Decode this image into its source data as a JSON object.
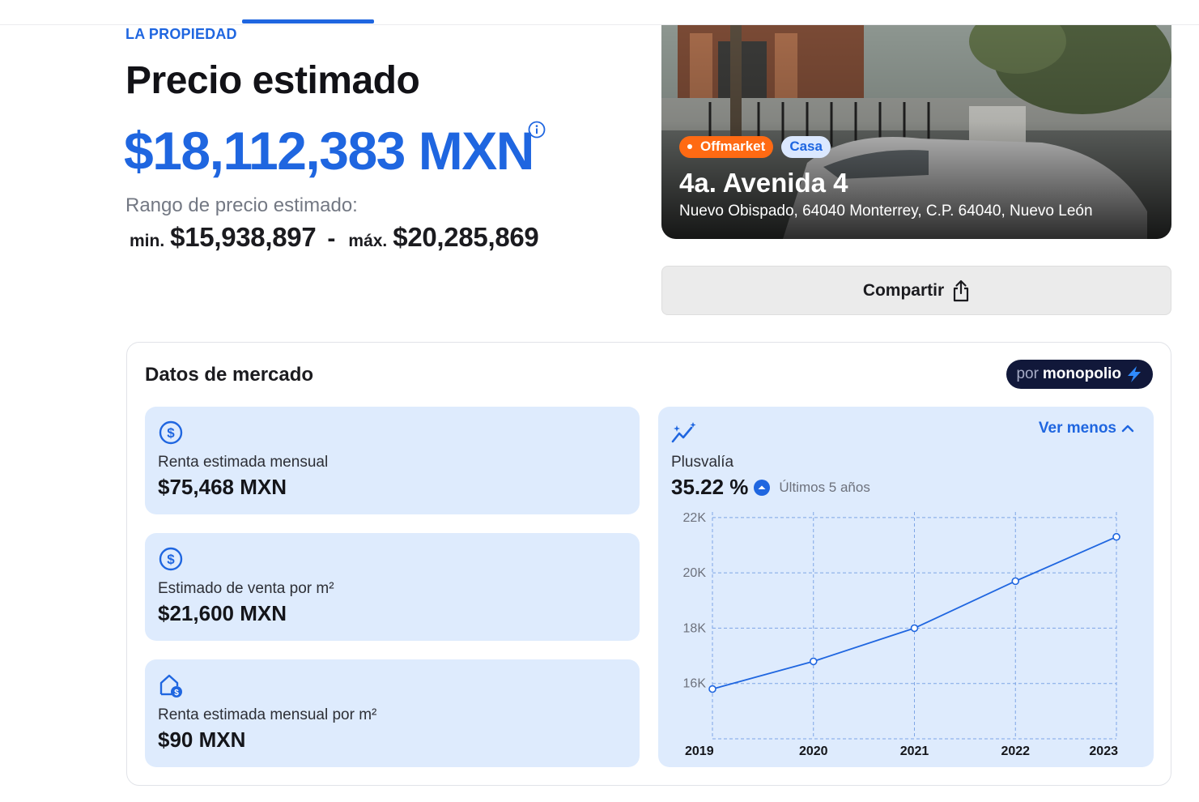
{
  "section": {
    "eyebrow": "LA PROPIEDAD"
  },
  "estimate": {
    "title": "Precio estimado",
    "price": "$18,112,383 MXN",
    "range_label": "Rango de precio estimado:",
    "min_label": "min.",
    "min_value": "$15,938,897",
    "dash": "-",
    "max_label": "máx.",
    "max_value": "$20,285,869"
  },
  "property": {
    "badge_offmarket": "Offmarket",
    "badge_type": "Casa",
    "title": "4a. Avenida 4",
    "address": "Nuevo Obispado, 64040 Monterrey, C.P. 64040, Nuevo León"
  },
  "share": {
    "label": "Compartir"
  },
  "market": {
    "title": "Datos de mercado",
    "powered_por": "por",
    "powered_brand": "monopolio",
    "stats": [
      {
        "icon": "dollar-circle-icon",
        "label": "Renta estimada mensual",
        "value": "$75,468 MXN"
      },
      {
        "icon": "dollar-circle-icon",
        "label": "Estimado de venta por m²",
        "value": "$21,600 MXN"
      },
      {
        "icon": "house-dollar-icon",
        "label": "Renta estimada mensual por m²",
        "value": "$90 MXN"
      }
    ],
    "plusvalia": {
      "icon": "trend-sparkle-icon",
      "toggle_label": "Ver menos",
      "label": "Plusvalía",
      "value": "35.22 %",
      "period": "Últimos 5 años"
    }
  },
  "colors": {
    "accent": "#1f66e0",
    "offmarket": "#ff6a13",
    "card_bg": "#deebfd",
    "brand_bg": "#11183a"
  },
  "chart_data": {
    "type": "line",
    "x": [
      "2019",
      "2020",
      "2021",
      "2022",
      "2023"
    ],
    "series": [
      {
        "values": [
          15800,
          16800,
          18000,
          19700,
          21300
        ]
      }
    ],
    "y_ticks": [
      "22K",
      "20K",
      "18K",
      "16K"
    ],
    "y_tick_values": [
      22000,
      20000,
      18000,
      16000
    ],
    "ylim": [
      14000,
      22200
    ],
    "grid": true,
    "title": "",
    "xlabel": "",
    "ylabel": ""
  }
}
